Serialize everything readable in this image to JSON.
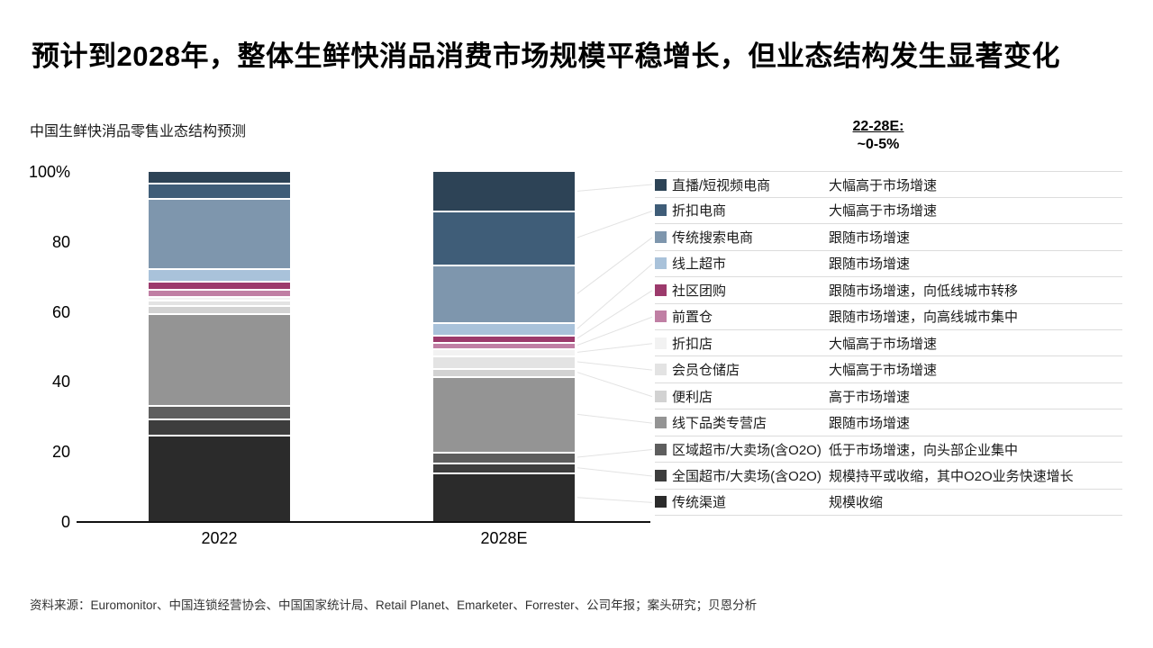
{
  "header": {
    "title": "预计到2028年，整体生鲜快消品消费市场规模平稳增长，但业态结构发生显著变化"
  },
  "growth_note": {
    "label": "22-28E:",
    "value": "~0-5%"
  },
  "chart_data": {
    "type": "stacked_bar_100pct",
    "title": "中国生鲜快消品零售业态结构预测",
    "categories": [
      "2022",
      "2028E"
    ],
    "unit": "% share of market",
    "ylim": [
      0,
      100
    ],
    "yticks": [
      "100%",
      "80",
      "60",
      "40",
      "20",
      "0"
    ],
    "grid": false,
    "legend_position": "right",
    "series_order": "top-to-bottom",
    "series": [
      {
        "name": "直播/短视频电商",
        "color": "#2d4356",
        "values": [
          3,
          11
        ],
        "note": "大幅高于市场增速"
      },
      {
        "name": "折扣电商",
        "color": "#3f5d78",
        "values": [
          4.5,
          15.5
        ],
        "note": "大幅高于市场增速"
      },
      {
        "name": "传统搜索电商",
        "color": "#7e96ad",
        "values": [
          20,
          16.5
        ],
        "note": "跟随市场增速"
      },
      {
        "name": "线上超市",
        "color": "#a9c2da",
        "values": [
          3.5,
          3.5
        ],
        "note": "跟随市场增速"
      },
      {
        "name": "社区团购",
        "color": "#9c3a6c",
        "values": [
          2.5,
          2
        ],
        "note": "跟随市场增速，向低线城市转移"
      },
      {
        "name": "前置仓",
        "color": "#c07fa4",
        "values": [
          2,
          2
        ],
        "note": "跟随市场增速，向高线城市集中"
      },
      {
        "name": "折扣店",
        "color": "#f2f2f2",
        "values": [
          1,
          2
        ],
        "note": "大幅高于市场增速"
      },
      {
        "name": "会员仓储店",
        "color": "#e3e3e3",
        "values": [
          1.5,
          3.5
        ],
        "note": "大幅高于市场增速"
      },
      {
        "name": "便利店",
        "color": "#d2d2d2",
        "values": [
          2.5,
          2.5
        ],
        "note": "高于市场增速"
      },
      {
        "name": "线下品类专营店",
        "color": "#949494",
        "values": [
          26,
          21.5
        ],
        "note": "跟随市场增速"
      },
      {
        "name": "区域超市/大卖场(含O2O)",
        "color": "#5e5e5e",
        "values": [
          4,
          3
        ],
        "note": "低于市场增速，向头部企业集中"
      },
      {
        "name": "全国超市/大卖场(含O2O)",
        "color": "#3d3d3d",
        "values": [
          4.5,
          3
        ],
        "note": "规模持平或收缩，其中O2O业务快速增长"
      },
      {
        "name": "传统渠道",
        "color": "#2b2b2b",
        "values": [
          25,
          14
        ],
        "note": "规模收缩"
      }
    ]
  },
  "source": {
    "text": "资料来源：Euromonitor、中国连锁经营协会、中国国家统计局、Retail Planet、Emarketer、Forrester、公司年报；案头研究；贝恩分析"
  }
}
